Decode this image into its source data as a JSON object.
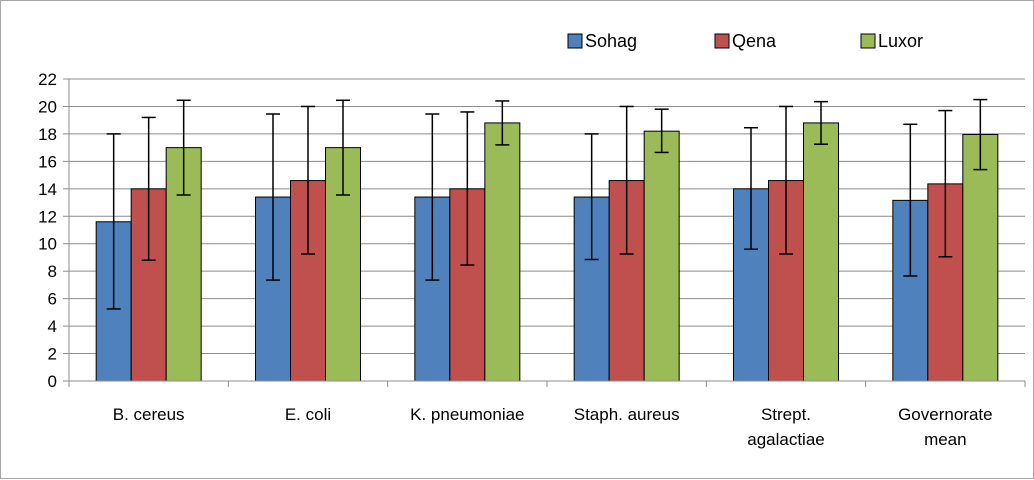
{
  "chart_data": {
    "type": "bar",
    "categories": [
      [
        "B. cereus"
      ],
      [
        "E. coli"
      ],
      [
        "K. pneumoniae"
      ],
      [
        "Staph. aureus"
      ],
      [
        "Strept.",
        "agalactiae"
      ],
      [
        "Governorate",
        "mean"
      ]
    ],
    "series": [
      {
        "name": "Sohag",
        "color": "#4f81bd",
        "values": [
          11.6,
          13.4,
          13.4,
          13.4,
          14.0,
          13.16
        ],
        "error_upper": [
          18.0,
          19.45,
          19.45,
          18.0,
          18.45,
          18.7
        ],
        "error_lower": [
          5.25,
          7.35,
          7.35,
          8.85,
          9.6,
          7.65
        ]
      },
      {
        "name": "Qena",
        "color": "#c0504d",
        "values": [
          14.0,
          14.6,
          14.0,
          14.6,
          14.6,
          14.36
        ],
        "error_upper": [
          19.2,
          20.0,
          19.6,
          20.0,
          20.0,
          19.7
        ],
        "error_lower": [
          8.8,
          9.25,
          8.45,
          9.25,
          9.25,
          9.05
        ]
      },
      {
        "name": "Luxor",
        "color": "#9bbb59",
        "values": [
          17.0,
          17.0,
          18.8,
          18.2,
          18.8,
          17.96
        ],
        "error_upper": [
          20.45,
          20.45,
          20.4,
          19.8,
          20.35,
          20.5
        ],
        "error_lower": [
          13.55,
          13.55,
          17.2,
          16.65,
          17.25,
          15.4
        ]
      }
    ],
    "yticks": [
      "0",
      "2",
      "4",
      "6",
      "8",
      "10",
      "12",
      "14",
      "16",
      "18",
      "20",
      "22"
    ],
    "ylim": [
      0,
      22
    ],
    "grid": true,
    "legend_position": "top-right"
  }
}
